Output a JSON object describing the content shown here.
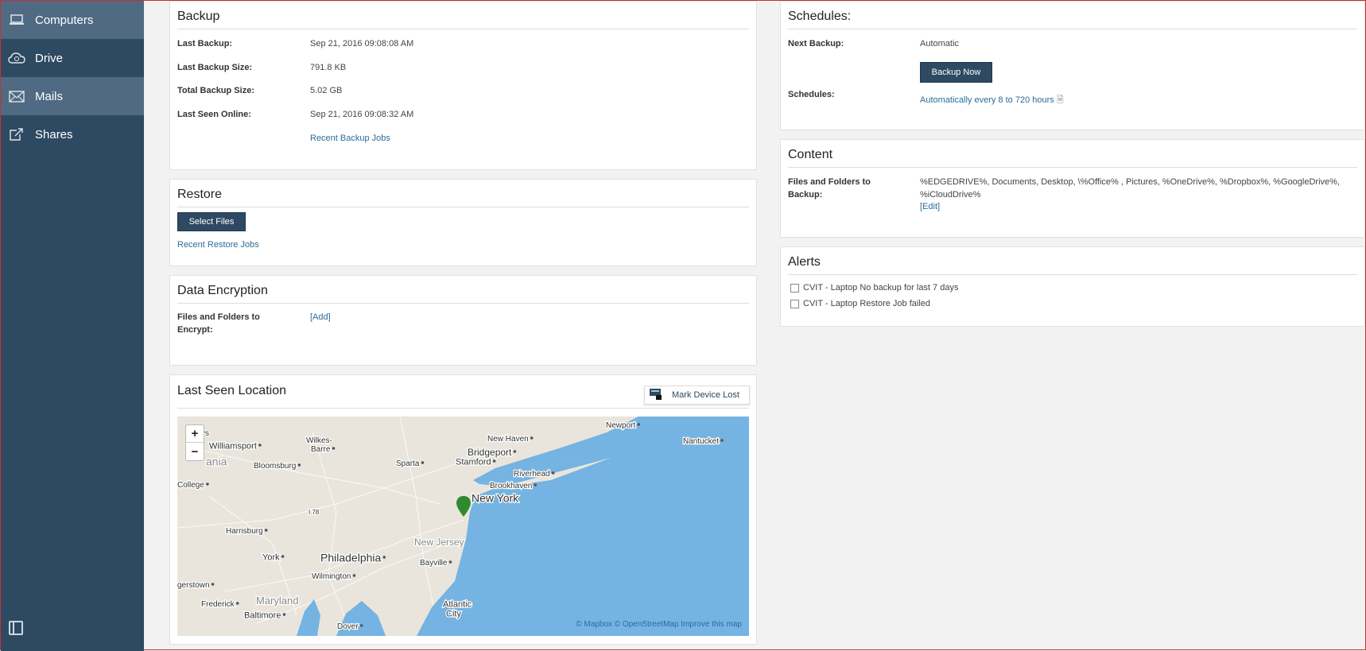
{
  "sidebar": {
    "items": [
      {
        "label": "Computers",
        "icon": "laptop-icon"
      },
      {
        "label": "Drive",
        "icon": "cloud-icon"
      },
      {
        "label": "Mails",
        "icon": "mail-icon"
      },
      {
        "label": "Shares",
        "icon": "share-icon"
      }
    ]
  },
  "backup": {
    "title": "Backup",
    "rows": [
      {
        "label": "Last Backup:",
        "value": "Sep 21, 2016 09:08:08 AM"
      },
      {
        "label": "Last Backup Size:",
        "value": "791.8 KB"
      },
      {
        "label": "Total Backup Size:",
        "value": "5.02 GB"
      },
      {
        "label": "Last Seen Online:",
        "value": "Sep 21, 2016 09:08:32 AM"
      }
    ],
    "recent_link": "Recent Backup Jobs"
  },
  "restore": {
    "title": "Restore",
    "select_files": "Select Files",
    "recent_link": "Recent Restore Jobs"
  },
  "encryption": {
    "title": "Data Encryption",
    "label_line1": "Files and Folders to",
    "label_line2": "Encrypt:",
    "add_link": "[Add]"
  },
  "location": {
    "title": "Last Seen Location",
    "mark_lost": "Mark Device Lost",
    "zoom_in": "+",
    "zoom_out": "−",
    "attribution": "© Mapbox © OpenStreetMap Improve this map",
    "labels": {
      "ys": "ys",
      "williamsport": "Williamsport",
      "wilkes": "Wilkes-",
      "barre": "Barre",
      "ania": "ania",
      "bloomsburg": "Bloomsburg",
      "sparta": "Sparta",
      "newhaven": "New Haven",
      "newport": "Newport",
      "nantucket": "Nantucket",
      "bridgeport": "Bridgeport",
      "stamford": "Stamford",
      "riverhead": "Riverhead",
      "brookhaven": "Brookhaven",
      "newyork": "New York",
      "college": "College",
      "harrisburg": "Harrisburg",
      "i78": "I 78",
      "newjersey": "New Jersey",
      "york": "York",
      "philadelphia": "Philadelphia",
      "bayville": "Bayville",
      "wilmington": "Wilmington",
      "gerstown": "gerstown",
      "maryland": "Maryland",
      "frederick": "Frederick",
      "baltimore": "Baltimore",
      "atlantic": "Atlantic",
      "city": "City",
      "dover": "Dover"
    },
    "colors": {
      "land": "#e9e5dc",
      "water": "#74b3e2",
      "pin": "#2e8b2e"
    }
  },
  "schedules": {
    "title": "Schedules:",
    "next_label": "Next Backup:",
    "next_value": "Automatic",
    "backup_now": "Backup Now",
    "schedules_label": "Schedules:",
    "schedules_link": "Automatically every 8 to 720 hours"
  },
  "content": {
    "title": "Content",
    "label_line1": "Files and Folders to",
    "label_line2": "Backup:",
    "value_line1": "%EDGEDRIVE%, Documents, Desktop, \\%Office% , Pictures, %OneDrive%, %Dropbox%, %GoogleDrive%,",
    "value_line2": "%iCloudDrive%",
    "edit_link": "[Edit]"
  },
  "alerts": {
    "title": "Alerts",
    "items": [
      "CVIT - Laptop No backup for last 7 days",
      "CVIT - Laptop Restore Job failed"
    ]
  },
  "colors": {
    "sidebar": "#2e4a63",
    "sidebar_active": "#4f6a82",
    "button": "#2e4a63",
    "link": "#2a6d9a"
  }
}
